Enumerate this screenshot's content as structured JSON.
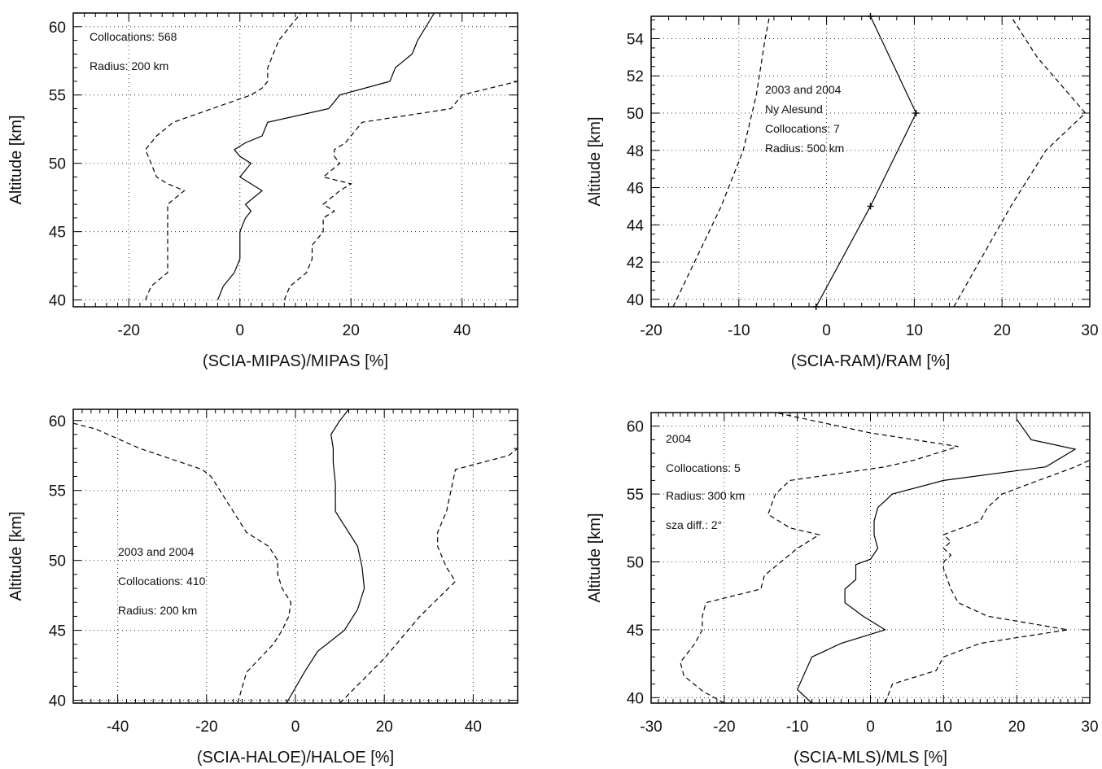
{
  "chart_data": [
    {
      "type": "line",
      "xlabel": "(SCIA-MIPAS)/MIPAS [%]",
      "ylabel": "Altitude [km]",
      "xlim": [
        -30,
        50
      ],
      "ylim": [
        39.5,
        61
      ],
      "xticks": [
        -20,
        0,
        20,
        40
      ],
      "yticks": [
        40,
        45,
        50,
        55,
        60
      ],
      "grid": true,
      "annotations": [
        "Collocations: 568",
        "Radius: 200 km"
      ],
      "series": [
        {
          "style": "solid",
          "points": [
            [
              -4,
              40
            ],
            [
              -3,
              41
            ],
            [
              -1,
              42
            ],
            [
              0,
              43
            ],
            [
              0,
              44
            ],
            [
              0,
              45
            ],
            [
              1,
              46
            ],
            [
              2,
              46.5
            ],
            [
              1,
              47
            ],
            [
              4,
              48
            ],
            [
              2,
              48.5
            ],
            [
              0,
              49
            ],
            [
              2,
              50
            ],
            [
              0,
              50.5
            ],
            [
              -1,
              51
            ],
            [
              1,
              51.5
            ],
            [
              4,
              52
            ],
            [
              5,
              53
            ],
            [
              16,
              54
            ],
            [
              18,
              55
            ],
            [
              27,
              56
            ],
            [
              28,
              57
            ],
            [
              31,
              58
            ],
            [
              32,
              59
            ],
            [
              35,
              61
            ]
          ]
        },
        {
          "style": "dashed",
          "points": [
            [
              -17,
              40
            ],
            [
              -16,
              41
            ],
            [
              -13,
              42
            ],
            [
              -13,
              43
            ],
            [
              -13,
              44
            ],
            [
              -13,
              45
            ],
            [
              -13,
              46
            ],
            [
              -13,
              47
            ],
            [
              -10,
              48
            ],
            [
              -13,
              48.5
            ],
            [
              -15,
              49
            ],
            [
              -16,
              50
            ],
            [
              -17,
              51
            ],
            [
              -15,
              52
            ],
            [
              -12,
              53
            ],
            [
              -5,
              54
            ],
            [
              2,
              55
            ],
            [
              4,
              55.5
            ],
            [
              5,
              56
            ],
            [
              5,
              57
            ],
            [
              6,
              58
            ],
            [
              7,
              59
            ],
            [
              9,
              60
            ],
            [
              11,
              61
            ]
          ]
        },
        {
          "style": "dashed",
          "points": [
            [
              8,
              40
            ],
            [
              9,
              41
            ],
            [
              12,
              42
            ],
            [
              13,
              43
            ],
            [
              13,
              44
            ],
            [
              15,
              45
            ],
            [
              15,
              46
            ],
            [
              17,
              46.5
            ],
            [
              15,
              47
            ],
            [
              18,
              48
            ],
            [
              20,
              48.5
            ],
            [
              15,
              49
            ],
            [
              18,
              50
            ],
            [
              17,
              50.5
            ],
            [
              17,
              51
            ],
            [
              19,
              51.5
            ],
            [
              22,
              53
            ],
            [
              38,
              54
            ],
            [
              40,
              55
            ],
            [
              50,
              56
            ]
          ]
        }
      ]
    },
    {
      "type": "line",
      "xlabel": "(SCIA-RAM)/RAM [%]",
      "ylabel": "Altitude [km]",
      "xlim": [
        -20,
        30
      ],
      "ylim": [
        39.6,
        55.2
      ],
      "xticks": [
        -20,
        -10,
        0,
        10,
        20,
        30
      ],
      "yticks": [
        40,
        42,
        44,
        46,
        48,
        50,
        52,
        54
      ],
      "grid": true,
      "annotations": [
        "2003 and 2004",
        "Ny Alesund",
        "Collocations: 7",
        "Radius: 500 km"
      ],
      "series": [
        {
          "style": "solid-marked",
          "points": [
            [
              -1.2,
              39.6
            ],
            [
              5,
              45
            ],
            [
              10.2,
              50
            ],
            [
              5,
              55.2
            ]
          ]
        },
        {
          "style": "dashed",
          "points": [
            [
              -17.5,
              39.6
            ],
            [
              -12,
              45
            ],
            [
              -9.5,
              48
            ],
            [
              -8,
              51
            ],
            [
              -7,
              54
            ],
            [
              -6.5,
              55.2
            ]
          ]
        },
        {
          "style": "dashed",
          "points": [
            [
              14.5,
              39.6
            ],
            [
              21,
              45
            ],
            [
              25,
              48
            ],
            [
              29.5,
              50
            ],
            [
              24,
              53
            ],
            [
              21,
              55.2
            ]
          ]
        }
      ]
    },
    {
      "type": "line",
      "xlabel": "(SCIA-HALOE)/HALOE [%]",
      "ylabel": "Altitude [km]",
      "xlim": [
        -50,
        50
      ],
      "ylim": [
        39.8,
        60.8
      ],
      "xticks": [
        -40,
        -20,
        0,
        20,
        40
      ],
      "yticks": [
        40,
        45,
        50,
        55,
        60
      ],
      "grid": true,
      "annotations": [
        "2003 and 2004",
        "Collocations: 410",
        "Radius: 200 km"
      ],
      "series": [
        {
          "style": "solid",
          "points": [
            [
              -2,
              39.8
            ],
            [
              2,
              42
            ],
            [
              5,
              43.5
            ],
            [
              11,
              45
            ],
            [
              14,
              46.5
            ],
            [
              15.5,
              48
            ],
            [
              15,
              49.5
            ],
            [
              14,
              51
            ],
            [
              12,
              52
            ],
            [
              9,
              53.5
            ],
            [
              9,
              54.5
            ],
            [
              9,
              55.5
            ],
            [
              8.5,
              57
            ],
            [
              8.5,
              58
            ],
            [
              8,
              59
            ],
            [
              10,
              60
            ],
            [
              12,
              60.8
            ]
          ]
        },
        {
          "style": "dashed",
          "points": [
            [
              -13,
              39.8
            ],
            [
              -11,
              42
            ],
            [
              -5,
              44
            ],
            [
              -3,
              45
            ],
            [
              -1.5,
              46
            ],
            [
              -1,
              47
            ],
            [
              -3,
              48
            ],
            [
              -4,
              49
            ],
            [
              -4,
              50
            ],
            [
              -6,
              51
            ],
            [
              -11,
              52
            ],
            [
              -13,
              53
            ],
            [
              -15,
              54
            ],
            [
              -17,
              55
            ],
            [
              -19,
              56
            ],
            [
              -21,
              56.5
            ],
            [
              -35,
              58
            ],
            [
              -45,
              59.4
            ],
            [
              -50,
              59.8
            ]
          ]
        },
        {
          "style": "dashed",
          "points": [
            [
              10,
              39.8
            ],
            [
              20,
              43
            ],
            [
              28,
              46
            ],
            [
              36,
              48.5
            ],
            [
              34,
              49.5
            ],
            [
              32,
              51
            ],
            [
              32,
              52
            ],
            [
              34,
              53.5
            ],
            [
              35,
              55
            ],
            [
              36,
              56.5
            ],
            [
              48,
              57.5
            ],
            [
              50,
              58
            ]
          ]
        }
      ]
    },
    {
      "type": "line",
      "xlabel": "(SCIA-MLS)/MLS [%]",
      "ylabel": "Altitude [km]",
      "xlim": [
        -30,
        30
      ],
      "ylim": [
        39.6,
        61
      ],
      "xticks": [
        -30,
        -20,
        -10,
        0,
        10,
        20,
        30
      ],
      "yticks": [
        40,
        45,
        50,
        55,
        60
      ],
      "grid": true,
      "annotations": [
        "2004",
        "Collocations: 5",
        "Radius: 300 km",
        "sza diff.: 2°"
      ],
      "series": [
        {
          "style": "solid",
          "points": [
            [
              -8,
              39.6
            ],
            [
              -10,
              40.6
            ],
            [
              -9,
              41.8
            ],
            [
              -8,
              43
            ],
            [
              -4,
              44
            ],
            [
              2,
              45
            ],
            [
              -1,
              46
            ],
            [
              -3.5,
              47
            ],
            [
              -3.5,
              48
            ],
            [
              -2,
              48.7
            ],
            [
              -2,
              49.8
            ],
            [
              0,
              50.2
            ],
            [
              1,
              51
            ],
            [
              0.5,
              52
            ],
            [
              0.5,
              53
            ],
            [
              1,
              54
            ],
            [
              3,
              55
            ],
            [
              10,
              56
            ],
            [
              24,
              57
            ],
            [
              28,
              58.3
            ],
            [
              22,
              59
            ],
            [
              20,
              60.5
            ]
          ]
        },
        {
          "style": "dashed",
          "points": [
            [
              -20,
              39.6
            ],
            [
              -23,
              40.5
            ],
            [
              -25.5,
              41.6
            ],
            [
              -26,
              42.6
            ],
            [
              -24,
              44
            ],
            [
              -23,
              45
            ],
            [
              -23,
              46
            ],
            [
              -22.5,
              47
            ],
            [
              -15,
              48
            ],
            [
              -14.5,
              49
            ],
            [
              -10,
              51
            ],
            [
              -7,
              52
            ],
            [
              -11,
              52.5
            ],
            [
              -14,
              53.5
            ],
            [
              -13,
              55
            ],
            [
              -11,
              56
            ],
            [
              2,
              57
            ],
            [
              6,
              57.5
            ],
            [
              12,
              58.5
            ],
            [
              0,
              59.5
            ],
            [
              -13,
              61
            ]
          ]
        },
        {
          "style": "dashed",
          "points": [
            [
              2,
              39.6
            ],
            [
              3,
              41
            ],
            [
              9,
              42
            ],
            [
              10,
              43
            ],
            [
              15,
              44
            ],
            [
              27,
              45
            ],
            [
              16,
              46
            ],
            [
              12,
              47
            ],
            [
              11,
              48
            ],
            [
              10,
              49.5
            ],
            [
              10,
              50
            ],
            [
              11,
              50.5
            ],
            [
              10,
              51
            ],
            [
              11,
              51.5
            ],
            [
              10,
              52
            ],
            [
              15,
              53
            ],
            [
              16,
              54
            ],
            [
              18,
              55
            ],
            [
              23,
              56
            ],
            [
              28,
              57
            ],
            [
              30,
              57.5
            ]
          ]
        }
      ]
    }
  ]
}
